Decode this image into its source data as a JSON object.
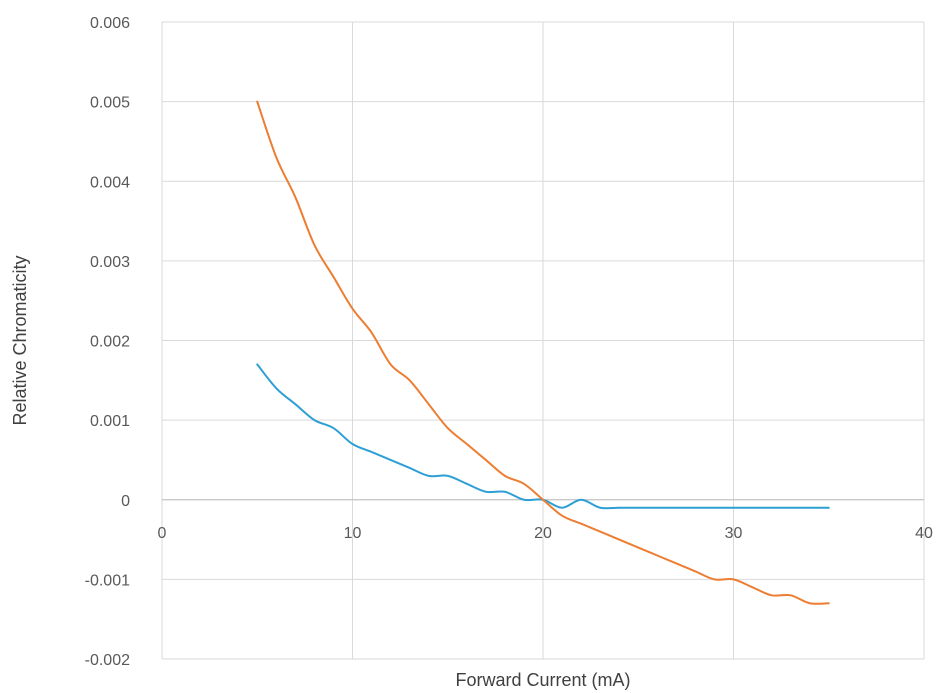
{
  "chart_data": {
    "type": "line",
    "title": "",
    "xlabel": "Forward Current (mA)",
    "ylabel": "Relative Chromaticity",
    "xlim": [
      0,
      40
    ],
    "ylim": [
      -0.002,
      0.006
    ],
    "x_ticks": [
      0,
      10,
      20,
      30,
      40
    ],
    "x_tick_labels": [
      "0",
      "10",
      "20",
      "30",
      "40"
    ],
    "y_ticks": [
      -0.002,
      -0.001,
      0,
      0.001,
      0.002,
      0.003,
      0.004,
      0.005,
      0.006
    ],
    "y_tick_labels": [
      "-0.002",
      "-0.001",
      "0",
      "0.001",
      "0.002",
      "0.003",
      "0.004",
      "0.005",
      "0.006"
    ],
    "grid": true,
    "legend": "none",
    "series": [
      {
        "color": "#2e9fd5",
        "x": [
          5,
          6,
          7,
          8,
          9,
          10,
          11,
          12,
          13,
          14,
          15,
          16,
          17,
          18,
          19,
          20,
          21,
          22,
          23,
          24,
          25,
          26,
          27,
          28,
          29,
          30,
          31,
          32,
          33,
          34,
          35
        ],
        "y": [
          0.0017,
          0.0014,
          0.0012,
          0.001,
          0.0009,
          0.0007,
          0.0006,
          0.0005,
          0.0004,
          0.0003,
          0.0003,
          0.0002,
          0.0001,
          0.0001,
          0.0,
          0.0,
          -0.0001,
          0.0,
          -0.0001,
          -0.0001,
          -0.0001,
          -0.0001,
          -0.0001,
          -0.0001,
          -0.0001,
          -0.0001,
          -0.0001,
          -0.0001,
          -0.0001,
          -0.0001,
          -0.0001
        ]
      },
      {
        "color": "#ed7d31",
        "x": [
          5,
          6,
          7,
          8,
          9,
          10,
          11,
          12,
          13,
          14,
          15,
          16,
          17,
          18,
          19,
          20,
          21,
          22,
          23,
          24,
          25,
          26,
          27,
          28,
          29,
          30,
          31,
          32,
          33,
          34,
          35
        ],
        "y": [
          0.005,
          0.0043,
          0.0038,
          0.0032,
          0.0028,
          0.0024,
          0.0021,
          0.0017,
          0.0015,
          0.0012,
          0.0009,
          0.0007,
          0.0005,
          0.0003,
          0.0002,
          0.0,
          -0.0002,
          -0.0003,
          -0.0004,
          -0.0005,
          -0.0006,
          -0.0007,
          -0.0008,
          -0.0009,
          -0.001,
          -0.001,
          -0.0011,
          -0.0012,
          -0.0012,
          -0.0013,
          -0.0013
        ]
      }
    ]
  }
}
